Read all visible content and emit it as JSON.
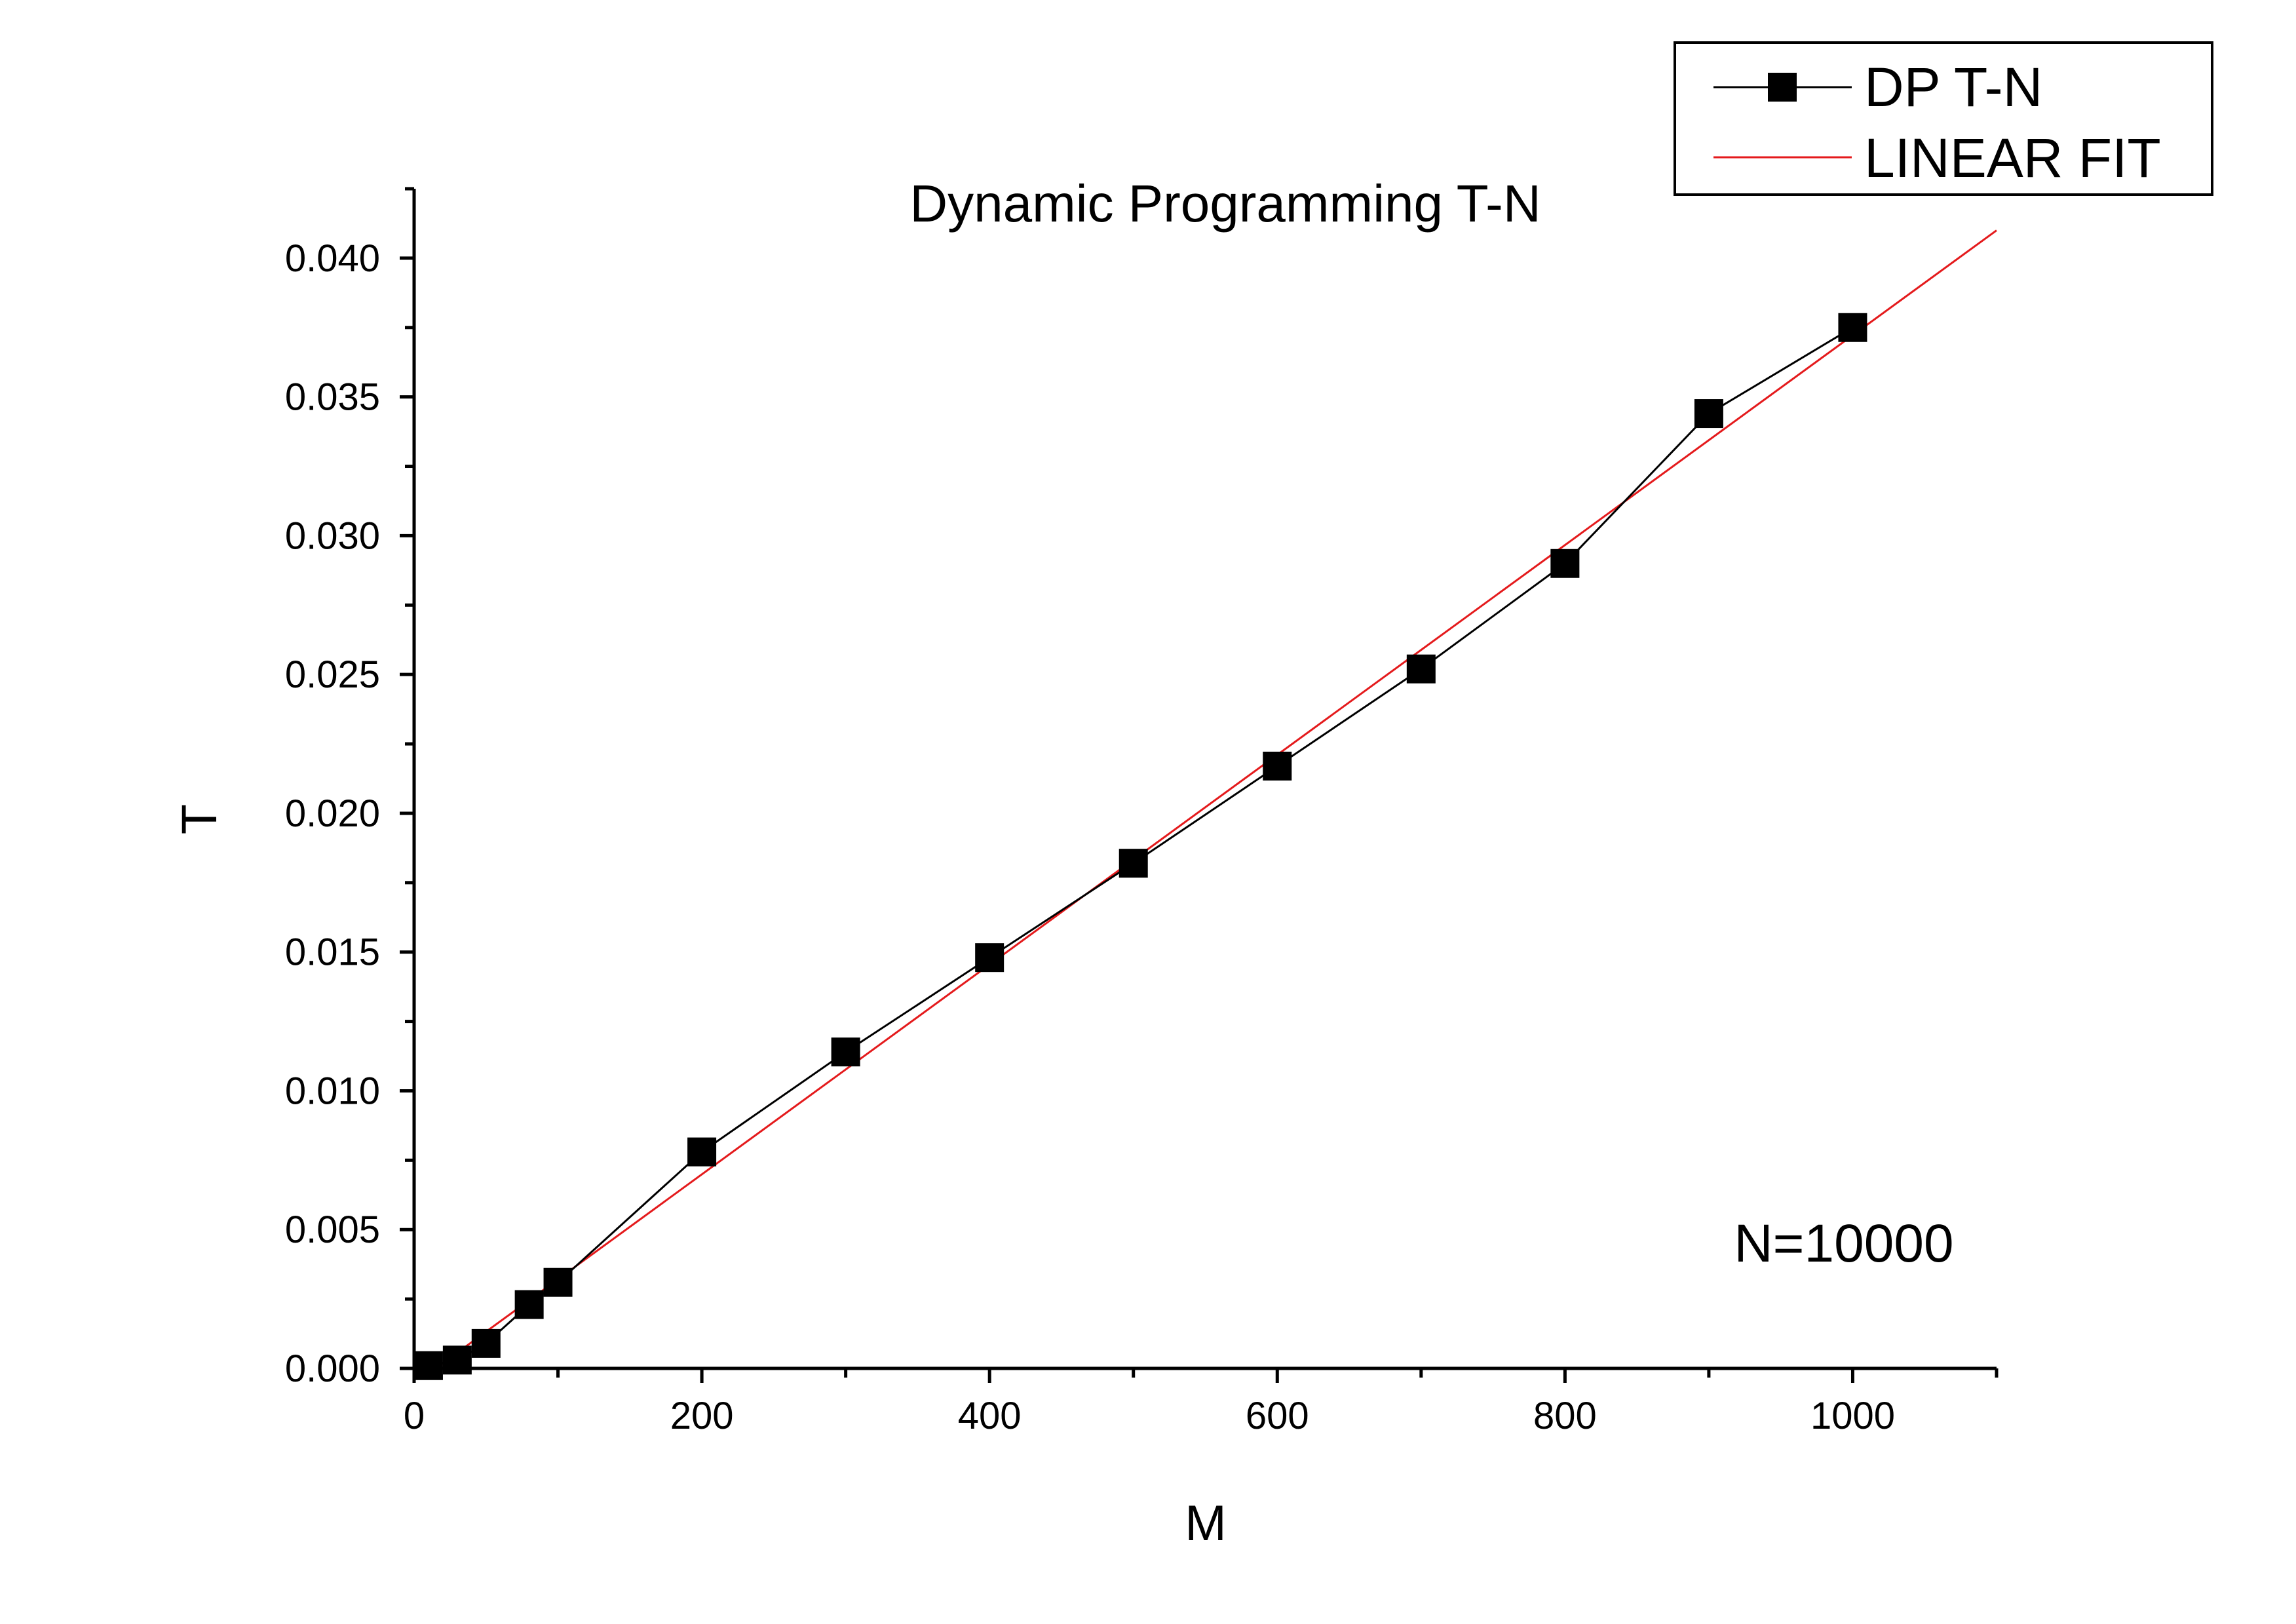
{
  "chart_data": {
    "type": "scatter",
    "title": "Dynamic Programming T-N",
    "xlabel": "M",
    "ylabel": "T",
    "xlim": [
      0,
      1100
    ],
    "ylim": [
      0,
      0.0425
    ],
    "x_ticks": [
      0,
      200,
      400,
      600,
      800,
      1000
    ],
    "x_tick_labels": [
      "0",
      "200",
      "400",
      "600",
      "800",
      "1000"
    ],
    "y_ticks": [
      0,
      0.005,
      0.01,
      0.015,
      0.02,
      0.025,
      0.03,
      0.035,
      0.04
    ],
    "y_tick_labels": [
      "0.000",
      "0.005",
      "0.010",
      "0.015",
      "0.020",
      "0.025",
      "0.030",
      "0.035",
      "0.040"
    ],
    "grid": false,
    "legend_position": "top-right",
    "annotation": "N=10000",
    "series": [
      {
        "name": "DP T-N",
        "style": "line-with-square-markers",
        "color": "#000000",
        "x": [
          10,
          30,
          50,
          80,
          100,
          200,
          300,
          400,
          500,
          600,
          700,
          800,
          900,
          1000
        ],
        "y": [
          0.0001,
          0.0003,
          0.0009,
          0.0023,
          0.0031,
          0.0078,
          0.0114,
          0.0148,
          0.0182,
          0.0217,
          0.0252,
          0.029,
          0.0344,
          0.0375
        ]
      },
      {
        "name": "LINEAR FIT",
        "style": "line",
        "color": "#e41a1c",
        "x": [
          15,
          1100
        ],
        "y": [
          0.0,
          0.041
        ]
      }
    ]
  }
}
